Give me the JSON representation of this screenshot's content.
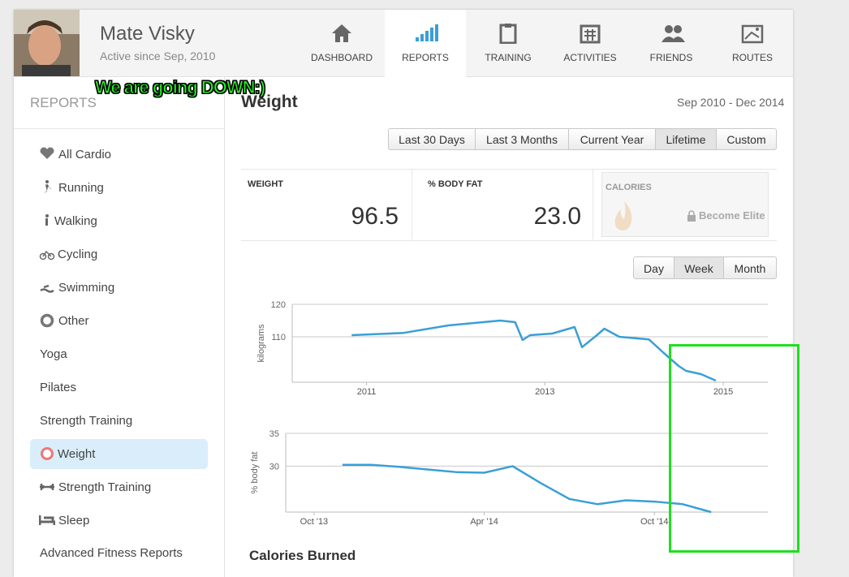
{
  "user": {
    "name": "Mate Visky",
    "since": "Active since Sep, 2010"
  },
  "nav": [
    "DASHBOARD",
    "REPORTS",
    "TRAINING",
    "ACTIVITIES",
    "FRIENDS",
    "ROUTES"
  ],
  "annotation": "We are going DOWN:)",
  "sidebar": {
    "title": "REPORTS",
    "items": [
      "All Cardio",
      "Running",
      "Walking",
      "Cycling",
      "Swimming",
      "Other",
      "Yoga",
      "Pilates",
      "Strength Training",
      "Weight",
      "Strength Training",
      "Sleep",
      "Advanced Fitness Reports"
    ]
  },
  "report": {
    "title": "Weight",
    "range": "Sep 2010 - Dec 2014",
    "range_buttons": [
      "Last 30 Days",
      "Last 3 Months",
      "Current Year",
      "Lifetime",
      "Custom"
    ],
    "stats": [
      {
        "label": "WEIGHT",
        "value": "96.5"
      },
      {
        "label": "% BODY FAT",
        "value": "23.0"
      }
    ],
    "calories": {
      "label": "CALORIES",
      "lock": "Become Elite"
    },
    "period_buttons": [
      "Day",
      "Week",
      "Month"
    ],
    "next_section": "Calories Burned"
  },
  "charts": [
    {
      "type": "line",
      "y_label": "kilograms",
      "color": "#3a9fd6",
      "x": [
        "2010-11",
        "2011-06",
        "2011-12",
        "2012-07",
        "2012-09",
        "2012-10",
        "2012-11",
        "2013-02",
        "2013-05",
        "2013-06",
        "2013-08",
        "2013-09",
        "2013-11",
        "2014-03",
        "2014-05",
        "2014-07",
        "2014-08",
        "2014-10",
        "2014-12"
      ],
      "values": [
        110.5,
        111.2,
        113.5,
        115,
        114.5,
        109,
        110.5,
        111,
        113,
        106.8,
        110.5,
        112.5,
        110,
        109.2,
        105,
        101,
        99.5,
        98.5,
        96.5
      ],
      "xlim": [
        "2010-03",
        "2015-07"
      ],
      "ylim": [
        96,
        120
      ],
      "xticks": [
        {
          "value": "2011-01",
          "label": "2011"
        },
        {
          "value": "2013-01",
          "label": "2013"
        },
        {
          "value": "2015-01",
          "label": "2015"
        }
      ],
      "yticks": [
        110,
        120
      ]
    },
    {
      "type": "line",
      "y_label": "% body fat",
      "color": "#3a9fd6",
      "x": [
        "2013-11",
        "2013-12",
        "2014-01",
        "2014-02",
        "2014-03",
        "2014-04",
        "2014-05",
        "2014-06",
        "2014-07",
        "2014-08",
        "2014-09",
        "2014-10",
        "2014-11",
        "2014-12"
      ],
      "values": [
        30.2,
        30.2,
        29.9,
        29.5,
        29.1,
        29,
        30,
        27.4,
        25,
        24.2,
        24.8,
        24.6,
        24.2,
        23
      ],
      "xlim": [
        "2013-09",
        "2015-02"
      ],
      "ylim": [
        23,
        35
      ],
      "xticks": [
        {
          "value": "2013-10",
          "label": "Oct '13"
        },
        {
          "value": "2014-04",
          "label": "Apr '14"
        },
        {
          "value": "2014-10",
          "label": "Oct '14"
        }
      ],
      "yticks": [
        30,
        35
      ]
    }
  ]
}
